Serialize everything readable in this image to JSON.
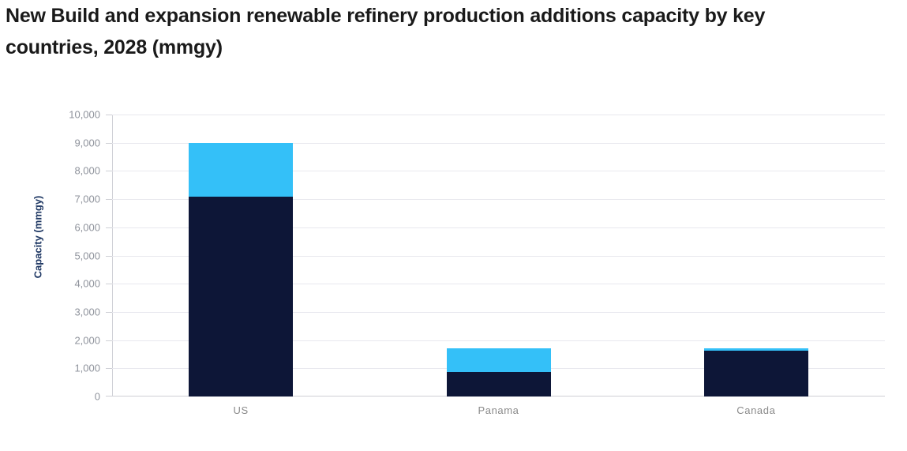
{
  "title": {
    "line1": "New Build and expansion renewable refinery production additions capacity by key",
    "line2": "countries, 2028 (mmgy)"
  },
  "chart_data": {
    "type": "bar",
    "stacked": true,
    "title": "New Build and expansion renewable refinery production additions capacity by key countries, 2028 (mmgy)",
    "xlabel": "",
    "ylabel": "Capacity (mmgy)",
    "categories": [
      "US",
      "Panama",
      "Canada"
    ],
    "series": [
      {
        "key": "dark_navy",
        "name": "Dark navy (bottom segment)",
        "color": "#0d1637",
        "values": [
          7100,
          860,
          1620
        ]
      },
      {
        "key": "light_blue",
        "name": "Light blue (top segment)",
        "color": "#34c0f8",
        "values": [
          1900,
          860,
          100
        ]
      }
    ],
    "stack_totals": [
      9000,
      1720,
      1720
    ],
    "ylim": [
      0,
      10000
    ],
    "ytick_step": 1000,
    "ytick_labels": [
      "0",
      "1,000",
      "2,000",
      "3,000",
      "4,000",
      "5,000",
      "6,000",
      "7,000",
      "8,000",
      "9,000",
      "10,000"
    ],
    "grid": true,
    "legend_position": "none"
  },
  "colors": {
    "title_text": "#1a1a1a",
    "axis_title_text": "#1f3864",
    "tick_label_text": "#8f939c",
    "category_label_text": "#8a8a8a",
    "gridline": "#e8e8ee",
    "axis_line": "#cfd0d6",
    "background": "#ffffff"
  }
}
